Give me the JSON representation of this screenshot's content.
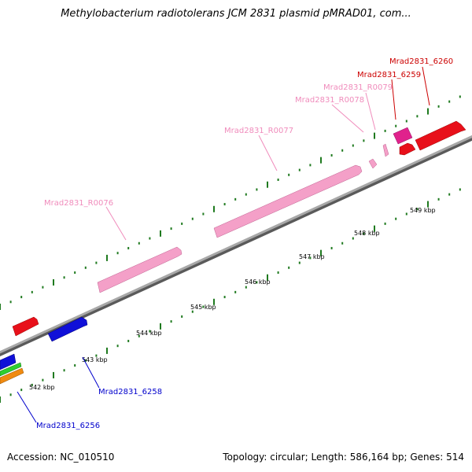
{
  "title": "Methylobacterium radiotolerans JCM 2831 plasmid pMRAD01, com...",
  "footer": {
    "accession": "Accession: NC_010510",
    "topology": "Topology: circular; Length: 586,164 bp; Genes: 514"
  },
  "colors": {
    "backbone": "#8a8a8a",
    "tick": "#1f7a1f",
    "cds_red": "#e8101a",
    "cds_blue": "#1010d8",
    "rna_pink": "#f4a0c8",
    "magenta": "#e0228c",
    "green": "#2fcf2f",
    "orange": "#f08a10",
    "label_pink": "#f08cbc",
    "label_red": "#cc0000",
    "label_blue": "#0000cc"
  },
  "scale_labels": [
    "542 kbp",
    "543 kbp",
    "544 kbp",
    "545 kbp",
    "546 kbp",
    "547 kbp",
    "548 kbp",
    "549 kbp"
  ],
  "gene_labels": [
    "Mrad2831_6260",
    "Mrad2831_6259",
    "Mrad2831_R0079",
    "Mrad2831_R0078",
    "Mrad2831_R0077",
    "Mrad2831_R0076",
    "Mrad2831_6258",
    "Mrad2831_6256"
  ]
}
